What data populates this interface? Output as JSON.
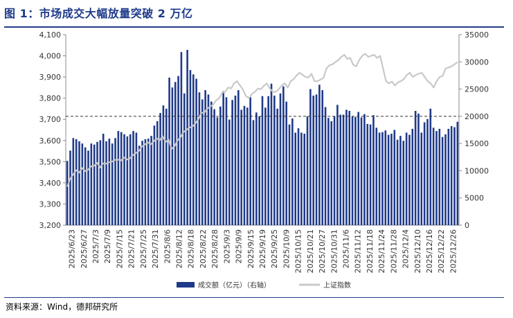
{
  "figure": {
    "title": "图 1：市场成交大幅放量突破 2 万亿",
    "source": "资料来源：Wind，德邦研究所"
  },
  "chart_data": {
    "type": "bar+line",
    "x_tick_labels": [
      "2025/6/23",
      "2025/6/27",
      "2025/7/3",
      "2025/7/9",
      "2025/7/15",
      "2025/7/21",
      "2025/7/25",
      "2025/7/31",
      "2025/8/6",
      "2025/8/12",
      "2025/8/18",
      "2025/8/22",
      "2025/8/28",
      "2025/9/3",
      "2025/9/9",
      "2025/9/15",
      "2025/9/19",
      "2025/9/25",
      "2025/10/9",
      "2025/10/15",
      "2025/10/21",
      "2025/10/27",
      "2025/10/31",
      "2025/11/6",
      "2025/11/12",
      "2025/11/18",
      "2025/11/24",
      "2025/11/28",
      "2025/12/4",
      "2025/12/10",
      "2025/12/16",
      "2025/12/22",
      "2025/12/26"
    ],
    "left_axis": {
      "ylim": [
        3200,
        4100
      ],
      "ticks": [
        "3,200",
        "3,300",
        "3,400",
        "3,500",
        "3,600",
        "3,700",
        "3,800",
        "3,900",
        "4,000",
        "4,100"
      ]
    },
    "right_axis": {
      "ylim": [
        0,
        35000
      ],
      "ticks": [
        "0",
        "5000",
        "10000",
        "15000",
        "20000",
        "25000",
        "30000",
        "35000"
      ]
    },
    "reference_line": {
      "value": 20000,
      "axis": "right",
      "style": "dashed"
    },
    "series": [
      {
        "name": "成交额（亿元）（右轴）",
        "type": "bar",
        "axis": "right",
        "color": "#1F3A8A",
        "values": [
          11800,
          13700,
          16000,
          15800,
          15400,
          15000,
          14300,
          13700,
          15000,
          14800,
          15300,
          15600,
          16800,
          15400,
          15900,
          15000,
          16000,
          17300,
          17100,
          16700,
          16300,
          16700,
          17300,
          17000,
          14600,
          15500,
          15800,
          15900,
          16400,
          18300,
          19100,
          20600,
          22000,
          21400,
          27100,
          25300,
          26300,
          27400,
          31800,
          24200,
          32200,
          28500,
          27700,
          26900,
          24400,
          23100,
          24800,
          24000,
          22700,
          21300,
          19800,
          21800,
          24600,
          23500,
          19400,
          23000,
          23800,
          24800,
          21200,
          21900,
          21600,
          23500,
          19300,
          20700,
          20000,
          23700,
          21600,
          23700,
          26000,
          23800,
          21400,
          24200,
          25500,
          22700,
          18500,
          19600,
          17000,
          17800,
          17000,
          16800,
          20000,
          25000,
          23800,
          24000,
          25800,
          24800,
          21700,
          19700,
          19100,
          20000,
          22100,
          20300,
          20300,
          21200,
          21000,
          20000,
          19900,
          20800,
          19800,
          20400,
          18600,
          18500,
          20200,
          17900,
          17000,
          17100,
          17400,
          16600,
          16800,
          17500,
          15700,
          16400,
          15500,
          17000,
          16600,
          17700,
          21000,
          20500,
          17000,
          18900,
          19500,
          21400,
          17900,
          17300,
          17700,
          16200,
          16700,
          17700,
          18200,
          18000,
          19000
        ],
        "approx": true
      },
      {
        "name": "上证指数",
        "type": "line",
        "axis": "left",
        "color": "#C8C8C8",
        "values": [
          3382,
          3420,
          3440,
          3460,
          3448,
          3470,
          3455,
          3462,
          3478,
          3480,
          3495,
          3472,
          3492,
          3490,
          3497,
          3500,
          3508,
          3510,
          3505,
          3520,
          3510,
          3515,
          3530,
          3540,
          3550,
          3570,
          3580,
          3592,
          3581,
          3595,
          3610,
          3600,
          3620,
          3593,
          3605,
          3560,
          3573,
          3600,
          3615,
          3640,
          3650,
          3660,
          3666,
          3680,
          3700,
          3730,
          3732,
          3750,
          3760,
          3770,
          3790,
          3800,
          3825,
          3830,
          3850,
          3846,
          3870,
          3880,
          3860,
          3840,
          3810,
          3800,
          3820,
          3830,
          3845,
          3842,
          3858,
          3870,
          3845,
          3830,
          3830,
          3842,
          3860,
          3870,
          3850,
          3880,
          3890,
          3908,
          3920,
          3910,
          3900,
          3898,
          3915,
          3880,
          3880,
          3888,
          3895,
          3940,
          3955,
          3960,
          3970,
          3980,
          3995,
          4005,
          3985,
          3990,
          3958,
          3950,
          3980,
          4000,
          4010,
          3995,
          4000,
          4005,
          3990,
          4000,
          3940,
          3880,
          3870,
          3878,
          3860,
          3875,
          3880,
          3890,
          3910,
          3920,
          3900,
          3910,
          3915,
          3920,
          3900,
          3880,
          3870,
          3850,
          3880,
          3900,
          3905,
          3940,
          3945,
          3950,
          3960,
          3970
        ]
      }
    ],
    "grid": false,
    "legend_position": "bottom"
  }
}
